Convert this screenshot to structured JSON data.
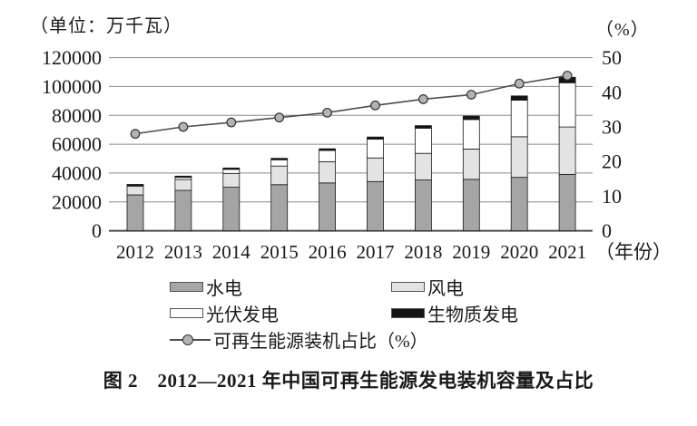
{
  "axes": {
    "left_unit": "（单位：万千瓦）",
    "right_unit": "（%）",
    "x_suffix": "（年份）",
    "left_ticks": [
      "0",
      "20000",
      "40000",
      "60000",
      "80000",
      "100000",
      "120000"
    ],
    "right_ticks": [
      "0",
      "10",
      "20",
      "30",
      "40",
      "50"
    ]
  },
  "chart_data": {
    "type": "combo",
    "subtype": "stacked-bar-with-line",
    "title": "图 2　2012—2021 年中国可再生能源发电装机容量及占比",
    "ylabel_left": "（单位：万千瓦）",
    "ylabel_right": "（%）",
    "xlabel_suffix": "（年份）",
    "ylim_left": [
      0,
      120000
    ],
    "ylim_right": [
      0,
      50
    ],
    "grid": true,
    "legend_position": "bottom",
    "categories": [
      "2012",
      "2013",
      "2014",
      "2015",
      "2016",
      "2017",
      "2018",
      "2019",
      "2020",
      "2021"
    ],
    "series": [
      {
        "name": "水电",
        "type": "bar",
        "stack": true,
        "color": "#a5a5a5",
        "values": [
          24890,
          28002,
          30183,
          31937,
          33153,
          34119,
          35226,
          35640,
          37016,
          39092
        ]
      },
      {
        "name": "风电",
        "type": "bar",
        "stack": true,
        "color": "#e3e3e3",
        "values": [
          6083,
          7548,
          9581,
          12934,
          14747,
          16367,
          18426,
          21005,
          28153,
          32848
        ]
      },
      {
        "name": "光伏发电",
        "type": "bar",
        "stack": true,
        "color": "#ffffff",
        "values": [
          341,
          1479,
          2805,
          4318,
          7742,
          13025,
          17446,
          20468,
          25343,
          30656
        ]
      },
      {
        "name": "生物质发电",
        "type": "bar",
        "stack": true,
        "color": "#141414",
        "values": [
          800,
          850,
          950,
          1031,
          1214,
          1476,
          1781,
          2369,
          2952,
          3798
        ]
      },
      {
        "name": "可再生能源装机占比（%）",
        "type": "line",
        "axis": "right",
        "color": "#4d4d4d",
        "marker_fill": "#b3b3b3",
        "marker_stroke": "#333333",
        "values": [
          28.0,
          30.0,
          31.3,
          32.7,
          34.1,
          36.2,
          38.0,
          39.3,
          42.5,
          44.8
        ]
      }
    ]
  },
  "colors": {
    "gridline": "#888888",
    "axis_line": "#4d4d4d",
    "bar_outline": "#1a1a1a",
    "text": "#1a1a1a"
  },
  "title": "图 2　2012—2021 年中国可再生能源发电装机容量及占比"
}
